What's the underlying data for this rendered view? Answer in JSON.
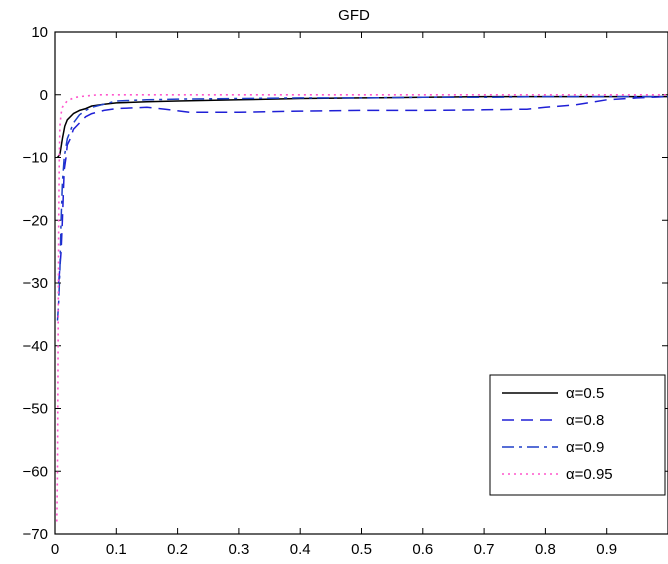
{
  "chart_data": {
    "type": "line",
    "title": "GFD",
    "xlabel": "",
    "ylabel": "",
    "xlim": [
      0,
      1
    ],
    "ylim": [
      -70,
      10
    ],
    "grid": false,
    "legend_position": "bottom-right",
    "xticks": [
      "0",
      "0.1",
      "0.2",
      "0.3",
      "0.4",
      "0.5",
      "0.6",
      "0.7",
      "0.8",
      "0.9"
    ],
    "yticks": [
      "10",
      "0",
      "−10",
      "−20",
      "−30",
      "−40",
      "−50",
      "−60",
      "−70"
    ],
    "series": [
      {
        "name": "α=0.5",
        "color": "#000000",
        "style": "solid",
        "x": [
          0.004,
          0.008,
          0.012,
          0.016,
          0.02,
          0.03,
          0.04,
          0.05,
          0.06,
          0.08,
          0.1,
          0.15,
          0.2,
          0.3,
          0.4,
          0.5,
          0.6,
          0.7,
          0.8,
          0.9,
          1.0
        ],
        "y": [
          -10,
          -9.5,
          -7,
          -5,
          -4,
          -3,
          -2.5,
          -2.2,
          -1.8,
          -1.5,
          -1.3,
          -1.1,
          -1.0,
          -0.8,
          -0.6,
          -0.5,
          -0.4,
          -0.3,
          -0.3,
          -0.3,
          -0.3
        ]
      },
      {
        "name": "α=0.8",
        "color": "#1f1fd6",
        "style": "dashed",
        "x": [
          0.006,
          0.01,
          0.012,
          0.015,
          0.018,
          0.02,
          0.025,
          0.03,
          0.04,
          0.05,
          0.06,
          0.08,
          0.1,
          0.15,
          0.18,
          0.22,
          0.25,
          0.3,
          0.4,
          0.5,
          0.6,
          0.7,
          0.77,
          0.8,
          0.85,
          0.9,
          0.95,
          1.0
        ],
        "y": [
          -30,
          -25,
          -20,
          -12,
          -10,
          -8,
          -7,
          -5.5,
          -4.5,
          -3.5,
          -3,
          -2.5,
          -2.2,
          -2.0,
          -2.3,
          -2.8,
          -2.8,
          -2.8,
          -2.6,
          -2.5,
          -2.5,
          -2.4,
          -2.3,
          -2.0,
          -1.6,
          -0.8,
          -0.5,
          -0.3
        ]
      },
      {
        "name": "α=0.9",
        "color": "#1f3fc8",
        "style": "dashdot",
        "x": [
          0.004,
          0.006,
          0.008,
          0.01,
          0.012,
          0.015,
          0.02,
          0.03,
          0.04,
          0.05,
          0.06,
          0.08,
          0.1,
          0.15,
          0.2,
          0.3,
          0.4,
          0.5,
          0.6,
          0.7,
          0.8,
          0.9,
          1.0
        ],
        "y": [
          -36,
          -33,
          -28,
          -20,
          -14,
          -10,
          -7,
          -4.5,
          -3.2,
          -2.5,
          -2,
          -1.5,
          -1.0,
          -0.8,
          -0.7,
          -0.6,
          -0.5,
          -0.5,
          -0.4,
          -0.4,
          -0.3,
          -0.3,
          -0.3
        ]
      },
      {
        "name": "α=0.95",
        "color": "#ff55cc",
        "style": "dotted",
        "x": [
          0.003,
          0.004,
          0.005,
          0.006,
          0.007,
          0.008,
          0.01,
          0.012,
          0.015,
          0.02,
          0.03,
          0.04,
          0.05,
          0.07,
          0.1,
          0.2,
          0.3,
          0.4,
          0.5,
          0.6,
          0.7,
          0.8,
          0.9,
          1.0
        ],
        "y": [
          -68,
          -60,
          -40,
          -20,
          -10,
          -5,
          -3,
          -2,
          -1.5,
          -1,
          -0.5,
          -0.3,
          -0.2,
          0,
          0,
          0,
          0,
          0,
          0,
          0,
          0,
          0,
          0,
          0
        ]
      }
    ]
  }
}
